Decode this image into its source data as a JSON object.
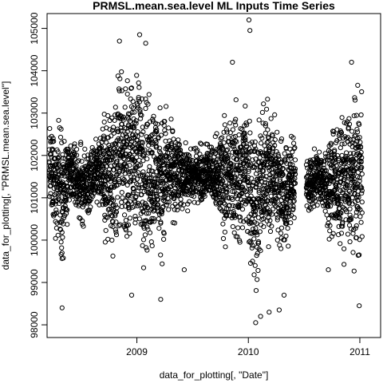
{
  "chart_data": {
    "type": "scatter",
    "title": "PRMSL.mean.sea.level ML Inputs Time Series",
    "xlabel": "data_for_plotting[, \"Date\"]",
    "ylabel": "data_for_plotting[, \"PRMSL.mean.sea.level\"]",
    "xlim": [
      "2008-03-13",
      "2011-03-10"
    ],
    "ylim": [
      97700,
      105350
    ],
    "x_ticks": [
      {
        "value": "2009-01-01",
        "label": "2009"
      },
      {
        "value": "2010-01-01",
        "label": "2010"
      },
      {
        "value": "2011-01-01",
        "label": "2011"
      }
    ],
    "y_ticks": [
      {
        "value": 98000,
        "label": "98000"
      },
      {
        "value": 99000,
        "label": "99000"
      },
      {
        "value": 100000,
        "label": "100000"
      },
      {
        "value": 101000,
        "label": "101000"
      },
      {
        "value": 102000,
        "label": "102000"
      },
      {
        "value": 103000,
        "label": "103000"
      },
      {
        "value": 104000,
        "label": "104000"
      },
      {
        "value": 105000,
        "label": "105000"
      }
    ],
    "grid": false,
    "legend": "none",
    "marker": "open-circle",
    "point_color": "#000000",
    "series": [
      {
        "x": [
          "2008-03-20",
          "2008-04-05",
          "2008-04-20",
          "2008-05-05",
          "2008-05-20",
          "2008-06-05",
          "2008-06-20",
          "2008-07-05",
          "2008-07-20",
          "2008-08-05",
          "2008-08-20",
          "2008-09-05",
          "2008-09-20",
          "2008-10-05",
          "2008-10-20",
          "2008-11-05",
          "2008-11-20",
          "2008-12-05",
          "2008-12-20",
          "2009-01-05",
          "2009-01-20",
          "2009-02-05",
          "2009-02-20",
          "2009-03-05",
          "2009-03-20",
          "2009-04-05",
          "2009-04-20",
          "2009-05-05",
          "2009-05-20",
          "2009-06-05",
          "2009-06-20",
          "2009-07-05",
          "2009-07-20",
          "2009-08-05",
          "2009-08-20",
          "2009-09-05",
          "2009-09-20",
          "2009-10-05",
          "2009-10-20",
          "2009-11-05",
          "2009-11-20",
          "2009-12-05",
          "2009-12-20",
          "2010-01-05",
          "2010-01-20",
          "2010-02-05",
          "2010-02-20",
          "2010-03-05",
          "2010-03-20",
          "2010-04-05",
          "2010-04-20",
          "2010-05-05",
          "2010-05-20",
          "2010-07-10",
          "2010-07-25",
          "2010-08-10",
          "2010-08-25",
          "2010-09-10",
          "2010-09-25",
          "2010-10-10",
          "2010-10-25",
          "2010-11-10",
          "2010-11-25",
          "2010-12-10",
          "2010-12-25"
        ],
        "low": [
          100600,
          99400,
          99700,
          98900,
          100100,
          100600,
          100300,
          100000,
          100200,
          100300,
          100700,
          100500,
          99400,
          99500,
          98800,
          99800,
          99900,
          99300,
          99600,
          99400,
          99000,
          99000,
          99100,
          99400,
          99100,
          99600,
          100100,
          99900,
          100400,
          100600,
          100500,
          100700,
          100800,
          100500,
          100900,
          100500,
          100000,
          100000,
          99500,
          99800,
          99400,
          99100,
          99700,
          99000,
          98200,
          98600,
          99400,
          99200,
          99900,
          99400,
          98800,
          99300,
          100100,
          100500,
          100400,
          100700,
          100600,
          100000,
          99800,
          99900,
          99100,
          99300,
          99100,
          99200,
          99000
        ],
        "high": [
          102900,
          103100,
          103400,
          103200,
          102700,
          102600,
          102500,
          102500,
          102400,
          102400,
          102800,
          102900,
          103500,
          103900,
          104200,
          104400,
          103800,
          104500,
          104300,
          104700,
          104600,
          104100,
          104300,
          103900,
          103700,
          103600,
          103000,
          103100,
          102700,
          102500,
          102400,
          102300,
          102400,
          102500,
          102500,
          102600,
          102800,
          103200,
          103500,
          103200,
          103800,
          103500,
          103900,
          103700,
          103700,
          103300,
          103600,
          103800,
          103500,
          103200,
          103300,
          102800,
          102800,
          102200,
          102200,
          102300,
          102400,
          102500,
          102800,
          103000,
          103300,
          103500,
          103700,
          103600,
          104100
        ]
      }
    ],
    "outliers": [
      {
        "x": "2008-05-01",
        "y": 98400
      },
      {
        "x": "2008-11-05",
        "y": 104700
      },
      {
        "x": "2008-12-15",
        "y": 98700
      },
      {
        "x": "2009-01-10",
        "y": 104850
      },
      {
        "x": "2009-01-30",
        "y": 104650
      },
      {
        "x": "2009-03-20",
        "y": 98600
      },
      {
        "x": "2009-06-05",
        "y": 99300
      },
      {
        "x": "2009-11-10",
        "y": 104200
      },
      {
        "x": "2010-01-03",
        "y": 105200
      },
      {
        "x": "2010-01-06",
        "y": 104950
      },
      {
        "x": "2010-01-25",
        "y": 98050
      },
      {
        "x": "2010-02-10",
        "y": 98200
      },
      {
        "x": "2010-03-10",
        "y": 98300
      },
      {
        "x": "2010-04-12",
        "y": 98350
      },
      {
        "x": "2010-04-28",
        "y": 98700
      },
      {
        "x": "2010-09-20",
        "y": 99300
      },
      {
        "x": "2010-12-05",
        "y": 104200
      },
      {
        "x": "2010-12-30",
        "y": 98450
      }
    ]
  }
}
